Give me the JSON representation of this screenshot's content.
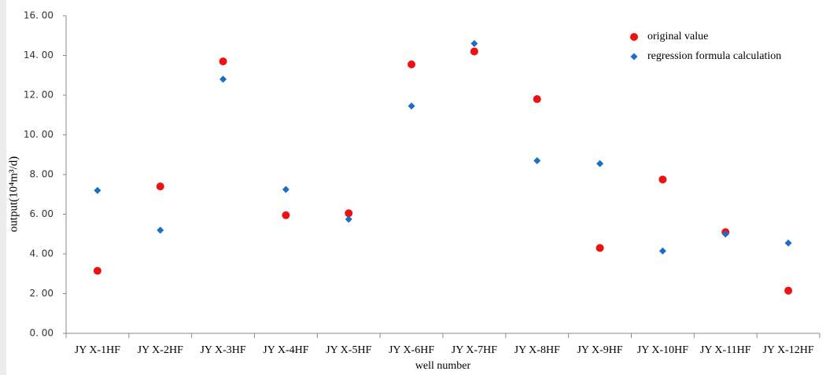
{
  "chart_data": {
    "type": "scatter",
    "x_label": "well number",
    "y_label": "output(10⁴m³/d)",
    "categories": [
      "JY X-1HF",
      "JY X-2HF",
      "JY X-3HF",
      "JY X-4HF",
      "JY X-5HF",
      "JY X-6HF",
      "JY X-7HF",
      "JY X-8HF",
      "JY X-9HF",
      "JY X-10HF",
      "JY X-11HF",
      "JY X-12HF"
    ],
    "series": [
      {
        "name": "original value",
        "color": "#ee1111",
        "marker": "circle",
        "values": [
          3.15,
          7.4,
          13.7,
          5.95,
          6.05,
          13.55,
          14.2,
          11.8,
          4.3,
          7.75,
          5.1,
          2.15
        ]
      },
      {
        "name": "regression formula calculation",
        "color": "#1a6fc4",
        "marker": "diamond",
        "values": [
          7.2,
          5.2,
          12.8,
          7.25,
          5.75,
          11.45,
          14.6,
          8.7,
          8.55,
          4.15,
          5.0,
          4.55
        ]
      }
    ],
    "ylim": [
      0,
      16
    ],
    "yticks": [
      {
        "value": 0,
        "label": "0. 00"
      },
      {
        "value": 2,
        "label": "2. 00"
      },
      {
        "value": 4,
        "label": "4. 00"
      },
      {
        "value": 6,
        "label": "6. 00"
      },
      {
        "value": 8,
        "label": "8. 00"
      },
      {
        "value": 10,
        "label": "10. 00"
      },
      {
        "value": 12,
        "label": "12. 00"
      },
      {
        "value": 14,
        "label": "14. 00"
      },
      {
        "value": 16,
        "label": "16. 00"
      }
    ],
    "legend": "top-right"
  }
}
